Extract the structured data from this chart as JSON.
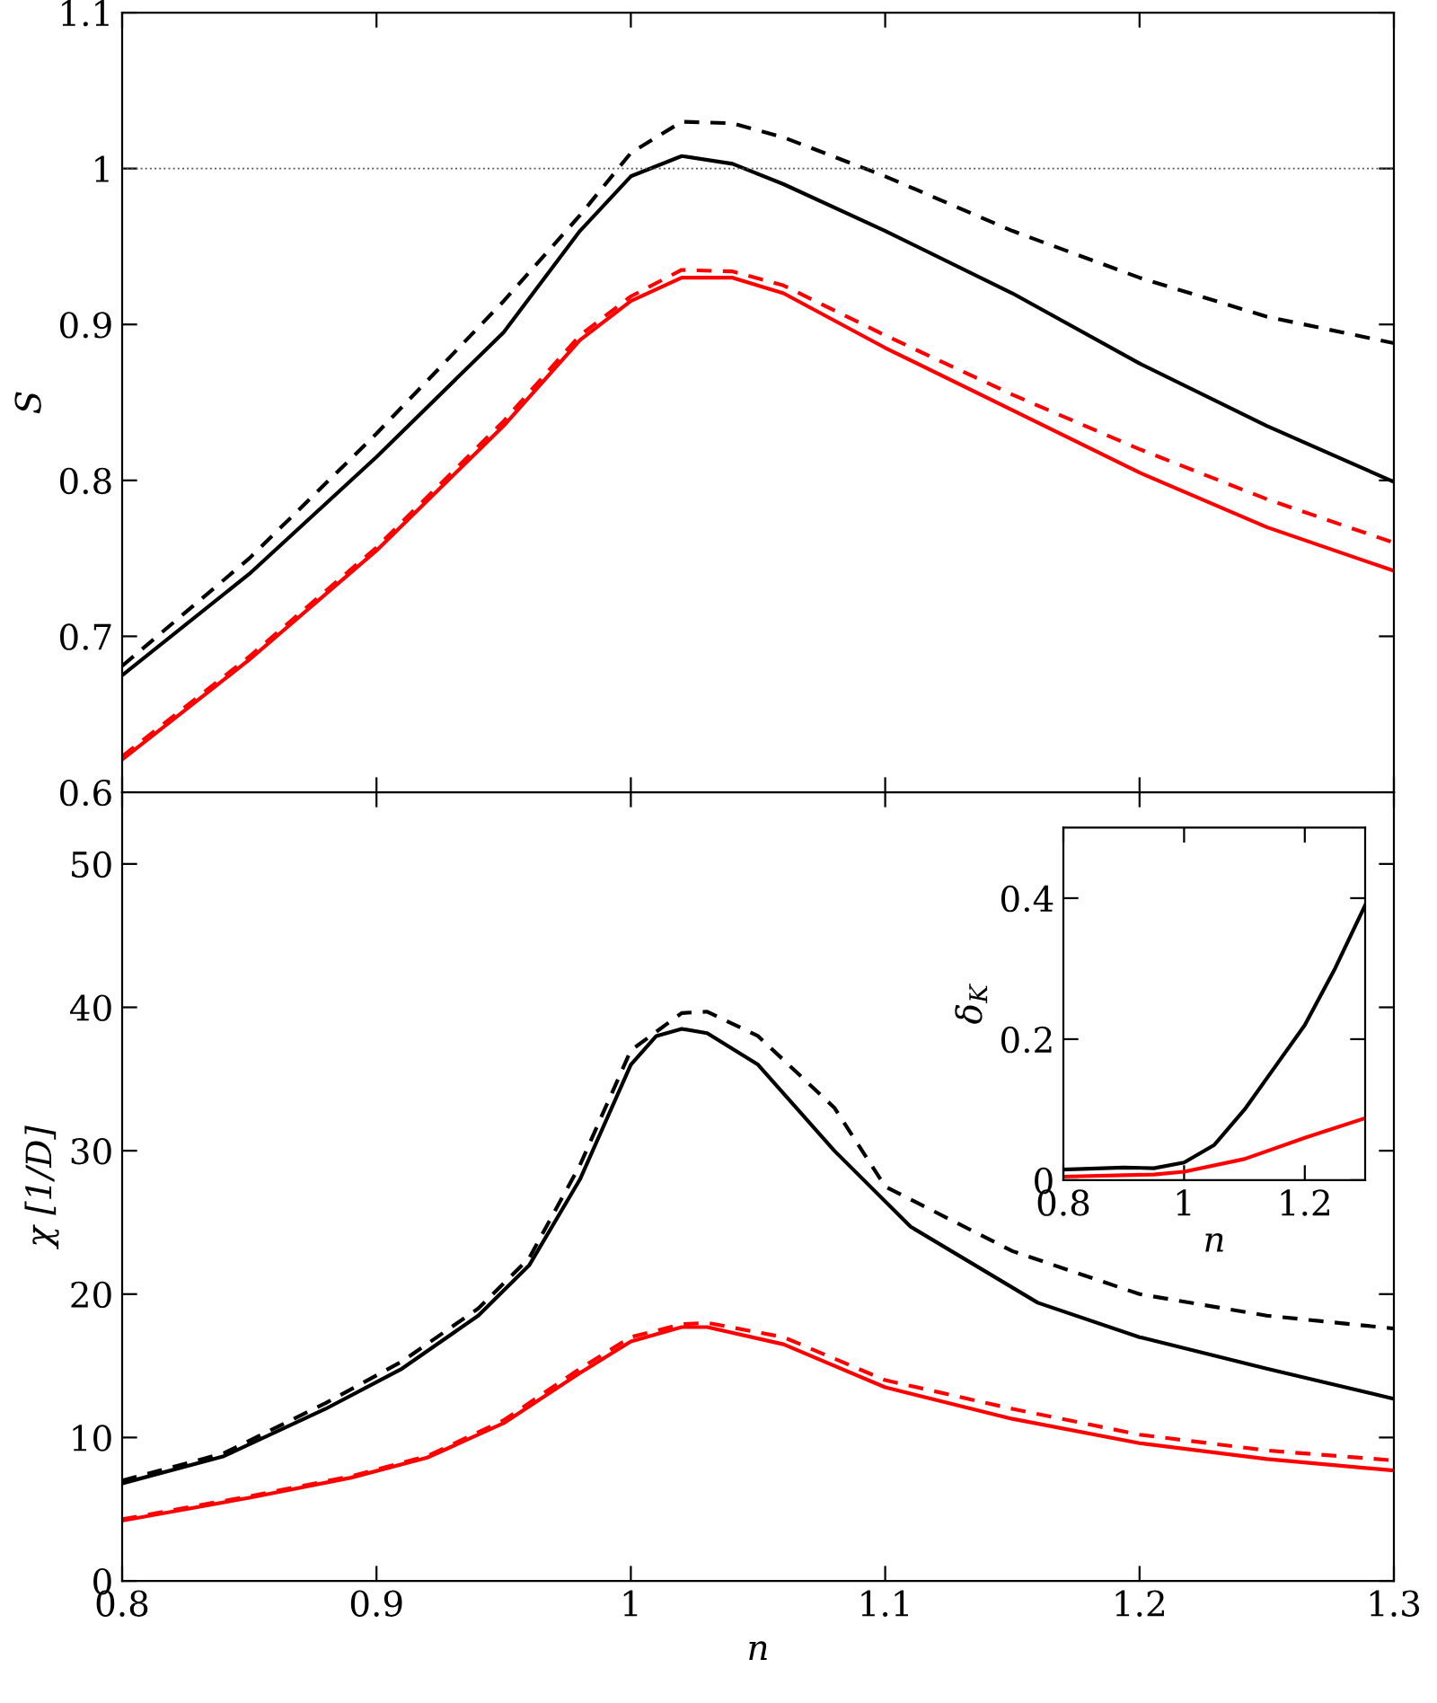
{
  "chart_data": [
    {
      "type": "line",
      "ylabel": "S",
      "xlim": [
        0.8,
        1.3
      ],
      "xticks": [
        0.8,
        0.9,
        1,
        1.1,
        1.2,
        1.3
      ],
      "ylim": [
        0.6,
        1.1
      ],
      "yticks": [
        0.6,
        0.7,
        0.8,
        0.9,
        1,
        1.1
      ],
      "tick_labels": "y",
      "ref_lines": [
        {
          "axis": "y",
          "value": 1,
          "color": "#555555",
          "line_style": "dotted"
        }
      ],
      "series": [
        {
          "color": "#000000",
          "line_style": "solid",
          "x": [
            0.8,
            0.85,
            0.9,
            0.95,
            0.98,
            1.0,
            1.02,
            1.04,
            1.06,
            1.1,
            1.15,
            1.2,
            1.25,
            1.3
          ],
          "values": [
            0.675,
            0.74,
            0.815,
            0.895,
            0.96,
            0.995,
            1.008,
            1.003,
            0.99,
            0.96,
            0.92,
            0.875,
            0.835,
            0.799
          ]
        },
        {
          "color": "#000000",
          "line_style": "dashed",
          "x": [
            0.8,
            0.85,
            0.9,
            0.95,
            0.98,
            1.0,
            1.02,
            1.04,
            1.06,
            1.1,
            1.15,
            1.2,
            1.25,
            1.3
          ],
          "values": [
            0.681,
            0.75,
            0.83,
            0.915,
            0.97,
            1.01,
            1.03,
            1.029,
            1.02,
            0.995,
            0.96,
            0.93,
            0.905,
            0.888
          ]
        },
        {
          "color": "#ff0000",
          "line_style": "solid",
          "x": [
            0.8,
            0.85,
            0.9,
            0.95,
            0.98,
            1.0,
            1.02,
            1.04,
            1.06,
            1.1,
            1.15,
            1.2,
            1.25,
            1.3
          ],
          "values": [
            0.621,
            0.685,
            0.755,
            0.835,
            0.89,
            0.915,
            0.93,
            0.93,
            0.92,
            0.885,
            0.845,
            0.805,
            0.77,
            0.742
          ]
        },
        {
          "color": "#ff0000",
          "line_style": "dashed",
          "x": [
            0.8,
            0.85,
            0.9,
            0.95,
            0.98,
            1.0,
            1.02,
            1.04,
            1.06,
            1.1,
            1.15,
            1.2,
            1.25,
            1.3
          ],
          "values": [
            0.623,
            0.687,
            0.757,
            0.838,
            0.893,
            0.918,
            0.935,
            0.934,
            0.925,
            0.893,
            0.855,
            0.82,
            0.788,
            0.76
          ]
        }
      ]
    },
    {
      "type": "line",
      "xlabel": "n",
      "ylabel": "χ [1/D]",
      "xlim": [
        0.8,
        1.3
      ],
      "xticks": [
        0.8,
        0.9,
        1,
        1.1,
        1.2,
        1.3
      ],
      "ylim": [
        0,
        55
      ],
      "yticks": [
        0,
        10,
        20,
        30,
        40,
        50
      ],
      "series": [
        {
          "color": "#000000",
          "line_style": "solid",
          "x": [
            0.8,
            0.84,
            0.88,
            0.91,
            0.94,
            0.96,
            0.98,
            1.0,
            1.01,
            1.02,
            1.03,
            1.05,
            1.08,
            1.11,
            1.16,
            1.2,
            1.25,
            1.3
          ],
          "values": [
            6.8,
            8.7,
            12,
            14.8,
            18.5,
            22,
            28,
            36,
            38,
            38.5,
            38.2,
            36,
            30,
            24.7,
            19.4,
            17,
            14.8,
            12.7
          ]
        },
        {
          "color": "#000000",
          "line_style": "dashed",
          "x": [
            0.8,
            0.84,
            0.88,
            0.91,
            0.94,
            0.96,
            0.98,
            1.0,
            1.02,
            1.03,
            1.05,
            1.08,
            1.1,
            1.15,
            1.2,
            1.25,
            1.3
          ],
          "values": [
            7.0,
            8.9,
            12.4,
            15.3,
            19,
            22.5,
            29,
            37,
            39.6,
            39.7,
            38,
            33,
            27.5,
            23,
            20,
            18.5,
            17.6
          ]
        },
        {
          "color": "#ff0000",
          "line_style": "solid",
          "x": [
            0.8,
            0.85,
            0.89,
            0.92,
            0.95,
            0.98,
            1.0,
            1.02,
            1.03,
            1.06,
            1.1,
            1.15,
            1.2,
            1.25,
            1.3
          ],
          "values": [
            4.2,
            5.8,
            7.2,
            8.6,
            11,
            14.5,
            16.7,
            17.7,
            17.7,
            16.5,
            13.5,
            11.3,
            9.6,
            8.5,
            7.7
          ]
        },
        {
          "color": "#ff0000",
          "line_style": "dashed",
          "x": [
            0.8,
            0.85,
            0.89,
            0.92,
            0.95,
            0.98,
            1.0,
            1.02,
            1.03,
            1.06,
            1.1,
            1.15,
            1.2,
            1.25,
            1.3
          ],
          "values": [
            4.3,
            5.9,
            7.3,
            8.7,
            11.2,
            14.8,
            17,
            17.9,
            18,
            17,
            14,
            12,
            10.2,
            9.1,
            8.4
          ]
        }
      ]
    },
    {
      "type": "line",
      "xlabel": "n",
      "ylabel": "δ$_{K}$",
      "xlim": [
        0.8,
        1.3
      ],
      "xticks": [
        0.8,
        1,
        1.2
      ],
      "ylim": [
        0,
        0.5
      ],
      "yticks": [
        0,
        0.2,
        0.4
      ],
      "series": [
        {
          "color": "#000000",
          "line_style": "solid",
          "x": [
            0.8,
            0.9,
            0.95,
            1.0,
            1.05,
            1.1,
            1.15,
            1.2,
            1.25,
            1.3
          ],
          "values": [
            0.015,
            0.018,
            0.017,
            0.025,
            0.05,
            0.1,
            0.16,
            0.22,
            0.3,
            0.39
          ]
        },
        {
          "color": "#ff0000",
          "line_style": "solid",
          "x": [
            0.8,
            0.95,
            1.0,
            1.1,
            1.2,
            1.3
          ],
          "values": [
            0.005,
            0.008,
            0.012,
            0.03,
            0.06,
            0.088
          ]
        }
      ]
    }
  ]
}
